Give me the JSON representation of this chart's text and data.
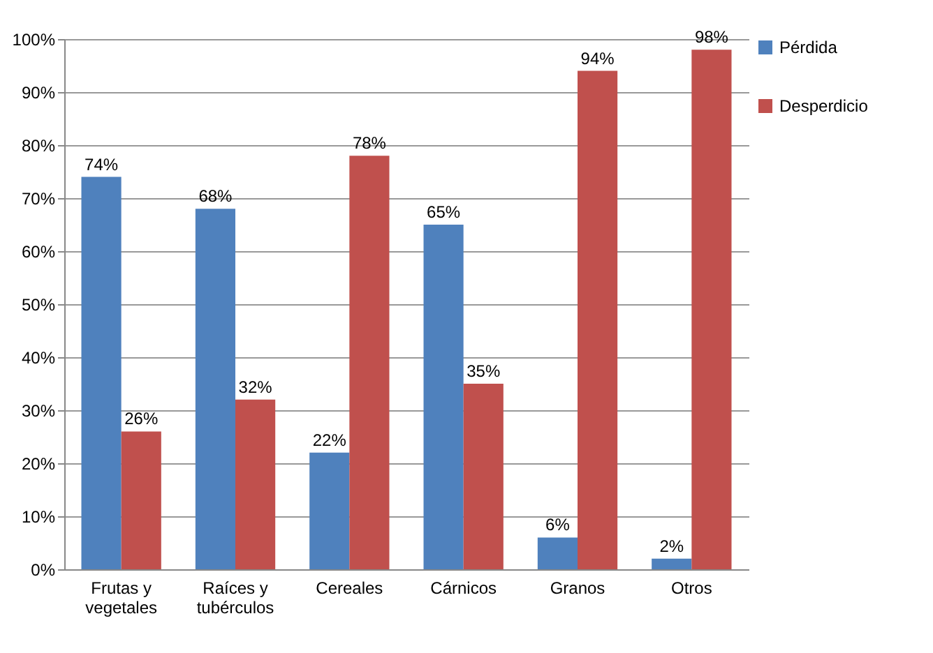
{
  "chart_data": {
    "type": "bar",
    "categories": [
      "Frutas y vegetales",
      "Raíces y tubérculos",
      "Cereales",
      "Cárnicos",
      "Granos",
      "Otros"
    ],
    "series": [
      {
        "name": "Pérdida",
        "color": "#4f81bd",
        "values": [
          74,
          68,
          22,
          65,
          6,
          2
        ],
        "value_labels": [
          "74%",
          "68%",
          "22%",
          "65%",
          "6%",
          "2%"
        ]
      },
      {
        "name": "Desperdicio",
        "color": "#c0504d",
        "values": [
          26,
          32,
          78,
          35,
          94,
          98
        ],
        "value_labels": [
          "26%",
          "32%",
          "78%",
          "35%",
          "94%",
          "98%"
        ]
      }
    ],
    "ylim": [
      0,
      100
    ],
    "yticks": [
      {
        "value": 0,
        "label": "0%"
      },
      {
        "value": 10,
        "label": "10%"
      },
      {
        "value": 20,
        "label": "20%"
      },
      {
        "value": 30,
        "label": "30%"
      },
      {
        "value": 40,
        "label": "40%"
      },
      {
        "value": 50,
        "label": "50%"
      },
      {
        "value": 60,
        "label": "60%"
      },
      {
        "value": 70,
        "label": "70%"
      },
      {
        "value": 80,
        "label": "80%"
      },
      {
        "value": 90,
        "label": "90%"
      },
      {
        "value": 100,
        "label": "100%"
      }
    ],
    "grid": true,
    "legend": "right"
  }
}
